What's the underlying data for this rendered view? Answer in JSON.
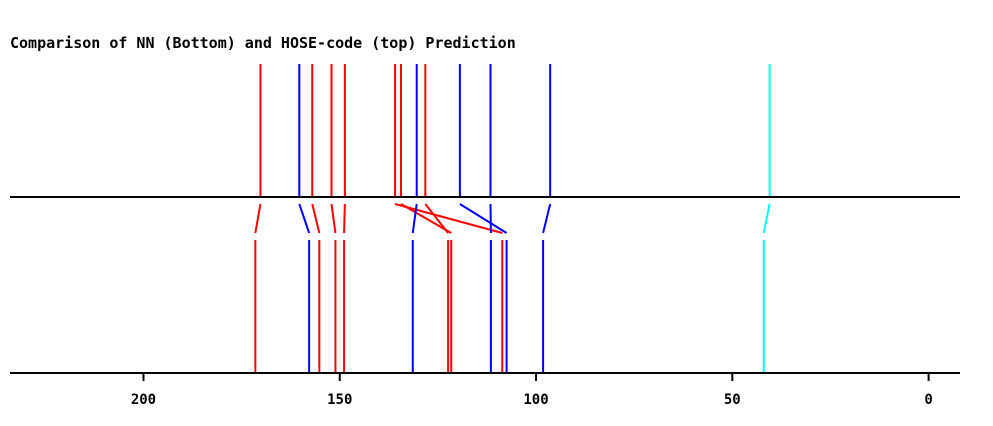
{
  "chart_data": {
    "type": "stick-comparison",
    "title": "Comparison of NN (Bottom) and HOSE-code (top) Prediction",
    "xlim": [
      234,
      -8
    ],
    "x_reversed": true,
    "ticks": [
      200,
      150,
      100,
      50,
      0
    ],
    "tick_labels": [
      "200",
      "150",
      "100",
      "50",
      "0"
    ],
    "lines": [
      {
        "top": 170.2,
        "bottom": 171.5,
        "color": "#ff0000"
      },
      {
        "top": 160.3,
        "bottom": 157.8,
        "color": "#0000ff"
      },
      {
        "top": 157.0,
        "bottom": 155.2,
        "color": "#ff0000"
      },
      {
        "top": 152.1,
        "bottom": 151.1,
        "color": "#ff0000"
      },
      {
        "top": 148.7,
        "bottom": 148.9,
        "color": "#ff0000"
      },
      {
        "top": 135.9,
        "bottom": 108.6,
        "color": "#ff0000"
      },
      {
        "top": 134.4,
        "bottom": 121.6,
        "color": "#ff0000"
      },
      {
        "top": 130.4,
        "bottom": 131.4,
        "color": "#0000ff"
      },
      {
        "top": 128.2,
        "bottom": 122.4,
        "color": "#ff0000"
      },
      {
        "top": 119.4,
        "bottom": 107.5,
        "color": "#0000ff"
      },
      {
        "top": 111.6,
        "bottom": 111.5,
        "color": "#0000ff"
      },
      {
        "top": 96.4,
        "bottom": 98.2,
        "color": "#0000ff"
      },
      {
        "top": 40.5,
        "bottom": 42.0,
        "color": "#00ffff"
      }
    ]
  }
}
